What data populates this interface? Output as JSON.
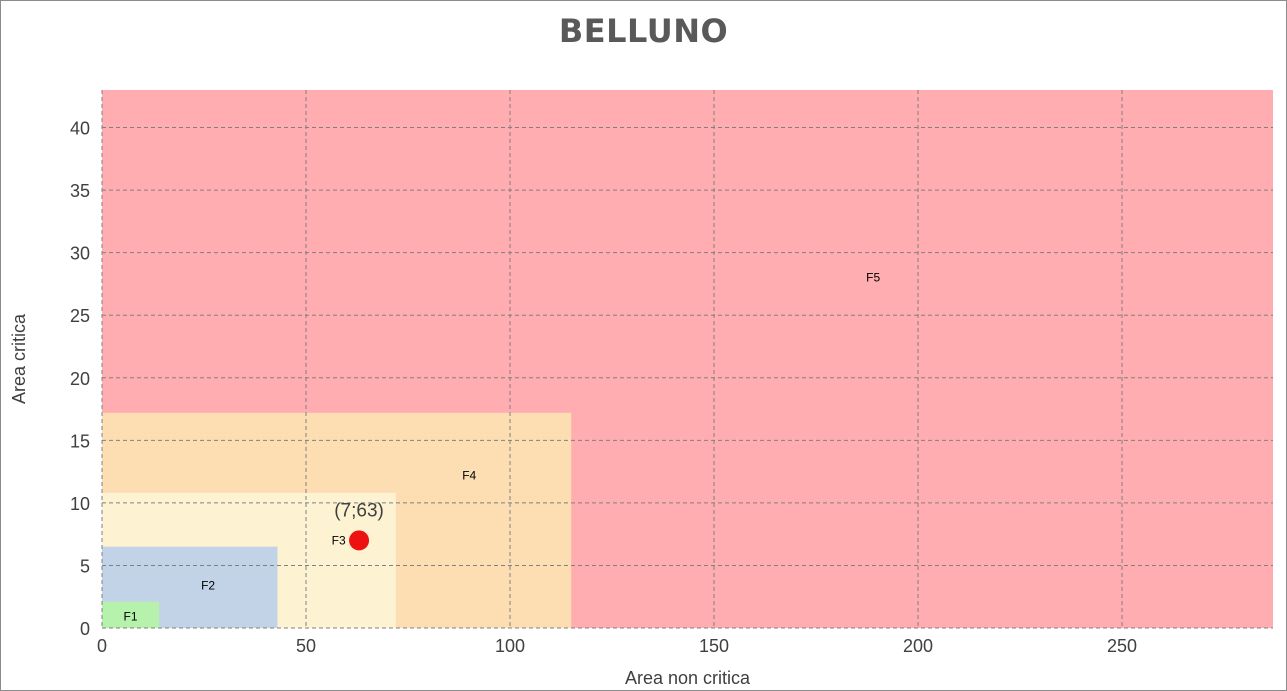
{
  "chart_data": {
    "type": "scatter",
    "title": "BELLUNO",
    "xlabel": "Area non critica",
    "ylabel": "Area critica",
    "xlim": [
      0,
      287
    ],
    "ylim": [
      0,
      43
    ],
    "x_ticks": [
      0,
      50,
      100,
      150,
      200,
      250
    ],
    "y_ticks": [
      0,
      5,
      10,
      15,
      20,
      25,
      30,
      35,
      40
    ],
    "grid": true,
    "regions": [
      {
        "name": "F5",
        "x_max": 287,
        "y_max": 43,
        "color": "#ffadb0",
        "label_x": 189,
        "label_y": 28
      },
      {
        "name": "F4",
        "x_max": 115,
        "y_max": 17.2,
        "color": "#fddeb3",
        "label_x": 90,
        "label_y": 12.2
      },
      {
        "name": "F3",
        "x_max": 72,
        "y_max": 10.8,
        "color": "#fdf3d3",
        "label_x": 58,
        "label_y": 7
      },
      {
        "name": "F2",
        "x_max": 43,
        "y_max": 6.5,
        "color": "#c2d3e8",
        "label_x": 26,
        "label_y": 3.4
      },
      {
        "name": "F1",
        "x_max": 14,
        "y_max": 2.1,
        "color": "#b7f2ad",
        "label_x": 7,
        "label_y": 0.9
      }
    ],
    "points": [
      {
        "x": 63,
        "y": 7,
        "label": "(7;63)",
        "color": "#ee1111"
      }
    ]
  }
}
